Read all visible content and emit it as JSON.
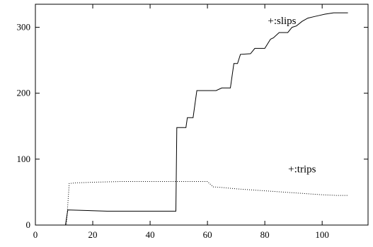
{
  "chart_data": {
    "type": "line",
    "xlim": [
      0,
      116
    ],
    "ylim": [
      0,
      335
    ],
    "x_ticks": [
      0,
      20,
      40,
      60,
      80,
      100
    ],
    "y_ticks": [
      0,
      100,
      200,
      300
    ],
    "grid": false,
    "legend": "inline labels near series",
    "series": [
      {
        "name": "+:slips",
        "style": "solid",
        "color": "#000000",
        "points": [
          [
            0,
            0
          ],
          [
            10.5,
            0
          ],
          [
            11.3,
            23
          ],
          [
            25,
            21
          ],
          [
            49,
            21
          ],
          [
            49.3,
            148
          ],
          [
            52.5,
            148
          ],
          [
            53,
            163
          ],
          [
            55,
            163
          ],
          [
            56.3,
            204
          ],
          [
            63,
            204
          ],
          [
            65,
            208
          ],
          [
            68,
            208
          ],
          [
            69.2,
            245
          ],
          [
            70.5,
            245
          ],
          [
            71.5,
            259
          ],
          [
            75,
            260
          ],
          [
            76.5,
            268
          ],
          [
            80,
            268
          ],
          [
            82,
            282
          ],
          [
            83,
            284
          ],
          [
            85,
            292
          ],
          [
            88,
            292
          ],
          [
            89.5,
            300
          ],
          [
            91,
            302
          ],
          [
            93,
            309
          ],
          [
            95,
            314
          ],
          [
            97,
            316
          ],
          [
            99,
            318
          ],
          [
            101,
            320
          ],
          [
            104,
            322
          ],
          [
            109,
            322
          ]
        ]
      },
      {
        "name": "+:trips",
        "style": "dotted",
        "color": "#000000",
        "points": [
          [
            0,
            0
          ],
          [
            10.8,
            0
          ],
          [
            11.8,
            63
          ],
          [
            14,
            64
          ],
          [
            20,
            65
          ],
          [
            30,
            66
          ],
          [
            40,
            66
          ],
          [
            60,
            66
          ],
          [
            62,
            58
          ],
          [
            65,
            57
          ],
          [
            70,
            55
          ],
          [
            80,
            52
          ],
          [
            90,
            49
          ],
          [
            100,
            46
          ],
          [
            105,
            45
          ],
          [
            109,
            45
          ]
        ]
      }
    ],
    "annotations": [
      {
        "text": "+:slips",
        "x": 86,
        "y": 305
      },
      {
        "text": "+:trips",
        "x": 93,
        "y": 80
      }
    ]
  }
}
